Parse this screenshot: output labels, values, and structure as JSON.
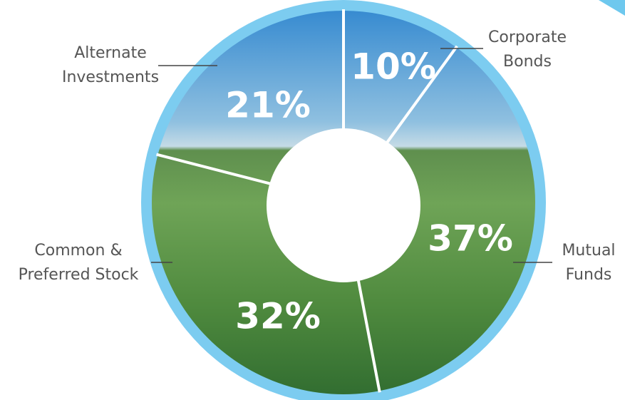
{
  "chart_data": {
    "type": "pie",
    "donut": true,
    "categories": [
      [
        "Corporate",
        "Bonds"
      ],
      [
        "Mutual",
        "Funds"
      ],
      [
        "Common &",
        "Preferred Stock"
      ],
      [
        "Alternate",
        "Investments"
      ]
    ],
    "values": [
      10,
      37,
      32,
      21
    ],
    "value_labels": [
      "10%",
      "37%",
      "32%",
      "21%"
    ]
  }
}
